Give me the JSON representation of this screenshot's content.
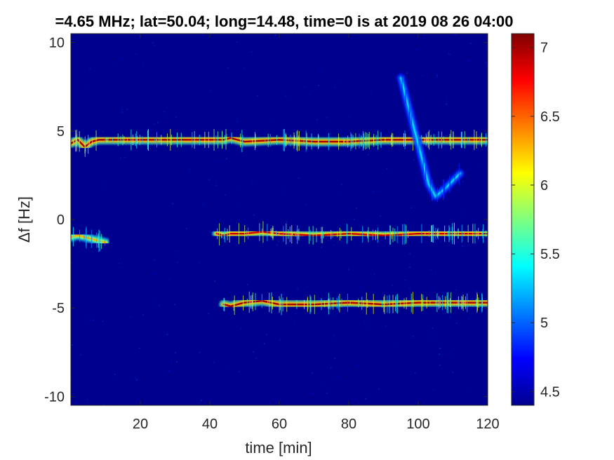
{
  "chart_data": {
    "type": "heatmap",
    "title": "=4.65 MHz;  lat=50.04; long=14.48, time=0 is at 2019 08 26 04:00",
    "xlabel": "time [min]",
    "ylabel": "Δf [Hz]",
    "xlim": [
      0,
      120
    ],
    "ylim": [
      -10.5,
      10.5
    ],
    "xticks": [
      20,
      40,
      60,
      80,
      100,
      120
    ],
    "yticks": [
      10,
      5,
      0,
      -5,
      -10
    ],
    "colorbar": {
      "range": [
        4.4,
        7.1
      ],
      "ticks": [
        7,
        6.5,
        6,
        5.5,
        5,
        4.5
      ],
      "colormap": "jet"
    },
    "background_level": 4.5,
    "traces": [
      {
        "x": [
          0,
          2,
          4,
          6,
          8,
          10,
          20,
          30,
          40,
          44,
          46,
          48,
          50,
          60,
          70,
          80,
          90,
          100,
          110,
          120
        ],
        "y": [
          4.3,
          4.5,
          4.1,
          4.4,
          4.5,
          4.5,
          4.5,
          4.5,
          4.5,
          4.5,
          4.6,
          4.5,
          4.4,
          4.5,
          4.4,
          4.4,
          4.5,
          4.5,
          4.5,
          4.5
        ],
        "level": 7.0
      },
      {
        "x": [
          0,
          2,
          4,
          6,
          8,
          10
        ],
        "y": [
          -1.0,
          -0.9,
          -1.0,
          -1.1,
          -1.2,
          -1.3
        ],
        "level": 6.3
      },
      {
        "x": [
          42,
          44,
          46,
          48,
          50,
          55,
          60,
          70,
          80,
          90,
          100,
          110,
          120
        ],
        "y": [
          -0.8,
          -0.9,
          -0.8,
          -0.8,
          -0.8,
          -0.7,
          -0.8,
          -0.9,
          -0.8,
          -0.9,
          -0.8,
          -0.8,
          -0.8
        ],
        "level": 6.9
      },
      {
        "x": [
          44,
          46,
          48,
          50,
          55,
          60,
          70,
          80,
          90,
          100,
          110,
          120
        ],
        "y": [
          -4.8,
          -4.9,
          -4.8,
          -4.7,
          -4.6,
          -4.8,
          -4.8,
          -4.7,
          -4.8,
          -4.7,
          -4.7,
          -4.7
        ],
        "level": 7.0
      },
      {
        "x": [
          95,
          97,
          99,
          101,
          103,
          105,
          108,
          112
        ],
        "y": [
          8.0,
          6.5,
          5.0,
          3.5,
          2.0,
          1.3,
          1.8,
          2.6
        ],
        "level": 5.3
      }
    ]
  }
}
